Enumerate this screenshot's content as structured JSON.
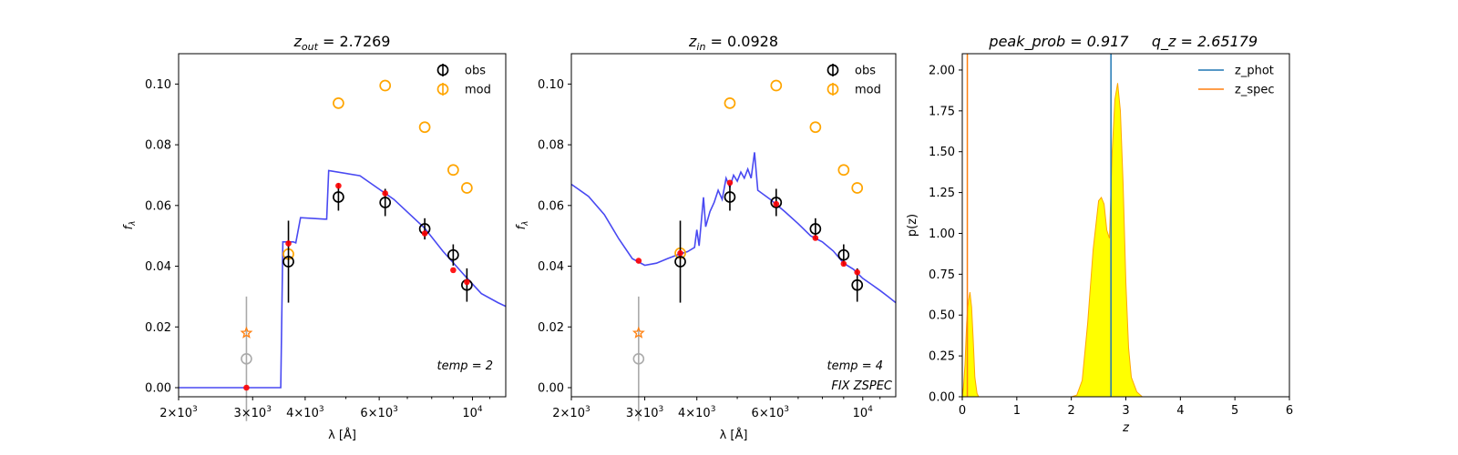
{
  "chart_data": [
    {
      "type": "scatter",
      "title": {
        "main": "z",
        "sub": "out",
        "rest": " = 2.7269"
      },
      "xlabel": "λ [Å]",
      "ylabel": "f",
      "ylabel_sub": "λ",
      "xscale": "log",
      "xlim": [
        2000,
        12000
      ],
      "ylim": [
        -0.003,
        0.11
      ],
      "x_ticks": [
        {
          "v": 2000,
          "m": "2",
          "e": "3"
        },
        {
          "v": 3000,
          "m": "3",
          "e": "3"
        },
        {
          "v": 4000,
          "m": "4",
          "e": "3"
        },
        {
          "v": 6000,
          "m": "6",
          "e": "3"
        },
        {
          "v": 10000,
          "m": "",
          "e": "4"
        }
      ],
      "y_ticks": [
        "0.00",
        "0.02",
        "0.04",
        "0.06",
        "0.08",
        "0.10"
      ],
      "legend": {
        "position": "top-right",
        "items": [
          {
            "label": "obs",
            "color": "#000000"
          },
          {
            "label": "mod",
            "color": "#ffa500"
          }
        ]
      },
      "annotations": [
        "temp = 2"
      ],
      "obs": [
        {
          "x": 3650,
          "y": 0.0415,
          "err": 0.0135
        },
        {
          "x": 4800,
          "y": 0.0628,
          "err": 0.0045
        },
        {
          "x": 6200,
          "y": 0.061,
          "err": 0.0045
        },
        {
          "x": 7700,
          "y": 0.0523,
          "err": 0.0035
        },
        {
          "x": 9000,
          "y": 0.0437,
          "err": 0.0035
        },
        {
          "x": 9700,
          "y": 0.0338,
          "err": 0.0055
        }
      ],
      "obs_faint": {
        "x": 2900,
        "y": 0.0095,
        "err": 0.0205
      },
      "mod": [
        {
          "x": 3650,
          "y": 0.044
        },
        {
          "x": 4800,
          "y": 0.0937
        },
        {
          "x": 6200,
          "y": 0.0995
        },
        {
          "x": 7700,
          "y": 0.0858
        },
        {
          "x": 9000,
          "y": 0.0717
        },
        {
          "x": 9700,
          "y": 0.0658
        }
      ],
      "star": {
        "x": 2900,
        "y": 0.018
      },
      "red_points": [
        {
          "x": 2900,
          "y": 0.0
        },
        {
          "x": 3650,
          "y": 0.0475
        },
        {
          "x": 4800,
          "y": 0.0665
        },
        {
          "x": 6200,
          "y": 0.064
        },
        {
          "x": 7700,
          "y": 0.0508
        },
        {
          "x": 9000,
          "y": 0.0387
        },
        {
          "x": 9700,
          "y": 0.0348
        }
      ],
      "sed": [
        [
          2000,
          0.0
        ],
        [
          3500,
          0.0
        ],
        [
          3540,
          0.048
        ],
        [
          3750,
          0.048
        ],
        [
          3800,
          0.0477
        ],
        [
          3900,
          0.056
        ],
        [
          4450,
          0.0555
        ],
        [
          4500,
          0.0555
        ],
        [
          4550,
          0.0715
        ],
        [
          5400,
          0.0698
        ],
        [
          6500,
          0.062
        ],
        [
          7700,
          0.0525
        ],
        [
          8500,
          0.045
        ],
        [
          9500,
          0.0375
        ],
        [
          10500,
          0.031
        ],
        [
          11500,
          0.028
        ],
        [
          12000,
          0.0268
        ]
      ]
    },
    {
      "type": "scatter",
      "title": {
        "main": "z",
        "sub": "in",
        "rest": " = 0.0928"
      },
      "xlabel": "λ [Å]",
      "ylabel": "f",
      "ylabel_sub": "λ",
      "xscale": "log",
      "xlim": [
        2000,
        12000
      ],
      "ylim": [
        -0.003,
        0.11
      ],
      "x_ticks": [
        {
          "v": 2000,
          "m": "2",
          "e": "3"
        },
        {
          "v": 3000,
          "m": "3",
          "e": "3"
        },
        {
          "v": 4000,
          "m": "4",
          "e": "3"
        },
        {
          "v": 6000,
          "m": "6",
          "e": "3"
        },
        {
          "v": 10000,
          "m": "",
          "e": "4"
        }
      ],
      "y_ticks": [
        "0.00",
        "0.02",
        "0.04",
        "0.06",
        "0.08",
        "0.10"
      ],
      "legend": {
        "position": "top-right",
        "items": [
          {
            "label": "obs",
            "color": "#000000"
          },
          {
            "label": "mod",
            "color": "#ffa500"
          }
        ]
      },
      "annotations": [
        "temp = 4",
        "FIX ZSPEC"
      ],
      "obs": [
        {
          "x": 3650,
          "y": 0.0415,
          "err": 0.0135
        },
        {
          "x": 4800,
          "y": 0.0628,
          "err": 0.0045
        },
        {
          "x": 6200,
          "y": 0.061,
          "err": 0.0045
        },
        {
          "x": 7700,
          "y": 0.0523,
          "err": 0.0035
        },
        {
          "x": 9000,
          "y": 0.0437,
          "err": 0.0035
        },
        {
          "x": 9700,
          "y": 0.0338,
          "err": 0.0055
        }
      ],
      "obs_faint": {
        "x": 2900,
        "y": 0.0095,
        "err": 0.0205
      },
      "mod": [
        {
          "x": 3650,
          "y": 0.0443
        },
        {
          "x": 4800,
          "y": 0.0937
        },
        {
          "x": 6200,
          "y": 0.0995
        },
        {
          "x": 7700,
          "y": 0.0858
        },
        {
          "x": 9000,
          "y": 0.0717
        },
        {
          "x": 9700,
          "y": 0.0658
        }
      ],
      "star": {
        "x": 2900,
        "y": 0.018
      },
      "red_points": [
        {
          "x": 2900,
          "y": 0.0418
        },
        {
          "x": 3650,
          "y": 0.0443
        },
        {
          "x": 4800,
          "y": 0.0675
        },
        {
          "x": 6200,
          "y": 0.0605
        },
        {
          "x": 7700,
          "y": 0.0493
        },
        {
          "x": 9000,
          "y": 0.0408
        },
        {
          "x": 9700,
          "y": 0.038
        }
      ],
      "sed": [
        [
          2000,
          0.067
        ],
        [
          2200,
          0.063
        ],
        [
          2400,
          0.057
        ],
        [
          2600,
          0.049
        ],
        [
          2800,
          0.0425
        ],
        [
          3000,
          0.0403
        ],
        [
          3200,
          0.041
        ],
        [
          3400,
          0.0425
        ],
        [
          3600,
          0.0438
        ],
        [
          3800,
          0.0448
        ],
        [
          3950,
          0.0462
        ],
        [
          4000,
          0.052
        ],
        [
          4050,
          0.0467
        ],
        [
          4150,
          0.0627
        ],
        [
          4200,
          0.053
        ],
        [
          4300,
          0.058
        ],
        [
          4400,
          0.061
        ],
        [
          4500,
          0.065
        ],
        [
          4600,
          0.062
        ],
        [
          4700,
          0.069
        ],
        [
          4800,
          0.066
        ],
        [
          4900,
          0.07
        ],
        [
          5000,
          0.068
        ],
        [
          5100,
          0.071
        ],
        [
          5200,
          0.069
        ],
        [
          5300,
          0.072
        ],
        [
          5400,
          0.069
        ],
        [
          5500,
          0.0775
        ],
        [
          5600,
          0.065
        ],
        [
          6000,
          0.062
        ],
        [
          6500,
          0.058
        ],
        [
          7000,
          0.054
        ],
        [
          7500,
          0.05
        ],
        [
          8000,
          0.048
        ],
        [
          8500,
          0.045
        ],
        [
          9000,
          0.041
        ],
        [
          9500,
          0.039
        ],
        [
          10000,
          0.036
        ],
        [
          10500,
          0.034
        ],
        [
          11000,
          0.032
        ],
        [
          11500,
          0.03
        ],
        [
          12000,
          0.028
        ]
      ]
    },
    {
      "type": "area",
      "title": {
        "left": "peak_prob = 0.917",
        "right": "q_z = 2.65179"
      },
      "xlabel": "z",
      "ylabel": "p(z)",
      "xlim": [
        0,
        6
      ],
      "ylim": [
        0,
        2.1
      ],
      "x_ticks": [
        "0",
        "1",
        "2",
        "3",
        "4",
        "5",
        "6"
      ],
      "y_ticks": [
        "0.00",
        "0.25",
        "0.50",
        "0.75",
        "1.00",
        "1.25",
        "1.50",
        "1.75",
        "2.00"
      ],
      "legend": {
        "position": "top-right",
        "items": [
          {
            "label": "z_phot",
            "color": "#1f77b4"
          },
          {
            "label": "z_spec",
            "color": "#ff7f0e"
          }
        ]
      },
      "z_phot": 2.7269,
      "z_spec": 0.0928,
      "fill_color": "#ffff00",
      "edge_color": "#ffa500",
      "pdf": [
        [
          0.0,
          0.0
        ],
        [
          0.02,
          0.05
        ],
        [
          0.05,
          0.2
        ],
        [
          0.08,
          0.45
        ],
        [
          0.1,
          0.55
        ],
        [
          0.12,
          0.6
        ],
        [
          0.14,
          0.64
        ],
        [
          0.17,
          0.55
        ],
        [
          0.2,
          0.35
        ],
        [
          0.23,
          0.12
        ],
        [
          0.27,
          0.02
        ],
        [
          0.3,
          0.0
        ],
        [
          2.0,
          0.0
        ],
        [
          2.1,
          0.01
        ],
        [
          2.2,
          0.1
        ],
        [
          2.3,
          0.45
        ],
        [
          2.4,
          0.9
        ],
        [
          2.5,
          1.2
        ],
        [
          2.55,
          1.22
        ],
        [
          2.6,
          1.18
        ],
        [
          2.65,
          1.02
        ],
        [
          2.7,
          0.97
        ],
        [
          2.75,
          1.5
        ],
        [
          2.8,
          1.82
        ],
        [
          2.85,
          1.92
        ],
        [
          2.9,
          1.75
        ],
        [
          2.95,
          1.3
        ],
        [
          3.0,
          0.7
        ],
        [
          3.05,
          0.3
        ],
        [
          3.1,
          0.12
        ],
        [
          3.2,
          0.03
        ],
        [
          3.3,
          0.0
        ],
        [
          5.0,
          0.0
        ]
      ]
    }
  ]
}
